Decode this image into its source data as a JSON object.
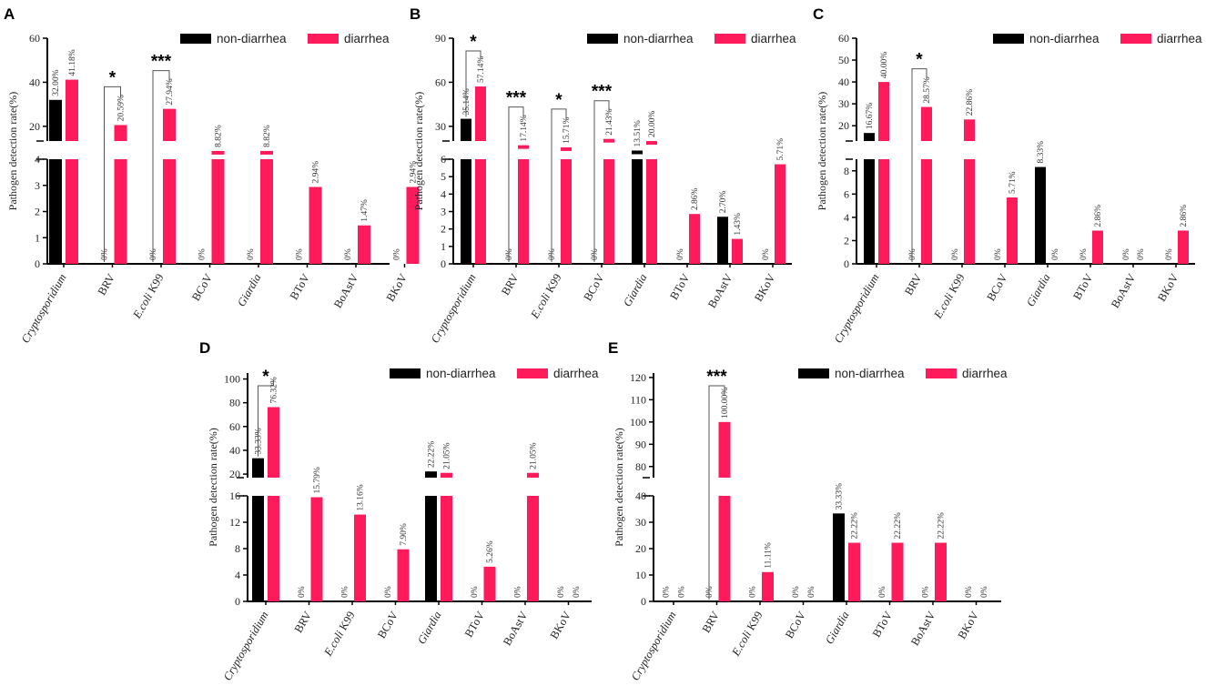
{
  "colors": {
    "non_diarrhea": "#000000",
    "diarrhea": "#ff1a5c"
  },
  "legend": {
    "non_diarrhea": "non-diarrhea",
    "diarrhea": "diarrhea"
  },
  "ylabel": "Pathogen detection rate(%)",
  "chart_data": [
    {
      "type": "bar",
      "panel": "A",
      "categories": [
        "Cryptosporidium",
        "BRV",
        "E.coli K99",
        "BCoV",
        "Giardia",
        "BToV",
        "BoAstV",
        "BKoV"
      ],
      "series": [
        {
          "name": "non-diarrhea",
          "values": [
            32.0,
            0,
            0,
            0,
            0,
            0,
            0,
            0
          ],
          "labels": [
            "32.00%",
            "0%",
            "0%",
            "0%",
            "0%",
            "0%",
            "0%",
            "0%"
          ]
        },
        {
          "name": "diarrhea",
          "values": [
            41.18,
            20.59,
            27.94,
            8.82,
            8.82,
            2.94,
            1.47,
            2.94
          ],
          "labels": [
            "41.18%",
            "20.59%",
            "27.94%",
            "8.82%",
            "8.82%",
            "2.94%",
            "1.47%",
            "2.94%"
          ]
        }
      ],
      "yticks_lower": [
        "0",
        "1",
        "2",
        "3",
        "4"
      ],
      "yticks_upper": [
        "20",
        "40",
        "60"
      ],
      "significance": [
        {
          "category": 1,
          "mark": "*"
        },
        {
          "category": 2,
          "mark": "***"
        }
      ]
    },
    {
      "type": "bar",
      "panel": "B",
      "categories": [
        "Cryptosporidium",
        "BRV",
        "E.coli K99",
        "BCoV",
        "Giardia",
        "BToV",
        "BoAstV",
        "BKoV"
      ],
      "series": [
        {
          "name": "non-diarrhea",
          "values": [
            35.14,
            0,
            0,
            0,
            13.51,
            0,
            2.7,
            0
          ],
          "labels": [
            "35.14%",
            "0%",
            "0%",
            "0%",
            "13.51%",
            "0%",
            "2.70%",
            "0%"
          ]
        },
        {
          "name": "diarrhea",
          "values": [
            57.14,
            17.14,
            15.71,
            21.43,
            20.0,
            2.86,
            1.43,
            5.71
          ],
          "labels": [
            "57.14%",
            "17.14%",
            "15.71%",
            "21.43%",
            "20.00%",
            "2.86%",
            "1.43%",
            "5.71%"
          ]
        }
      ],
      "yticks_lower": [
        "0",
        "1",
        "2",
        "3",
        "4",
        "5",
        "6"
      ],
      "yticks_upper": [
        "30",
        "60",
        "90"
      ],
      "significance": [
        {
          "category": 0,
          "mark": "*"
        },
        {
          "category": 1,
          "mark": "***"
        },
        {
          "category": 2,
          "mark": "*"
        },
        {
          "category": 3,
          "mark": "***"
        }
      ]
    },
    {
      "type": "bar",
      "panel": "C",
      "categories": [
        "Cryptosporidium",
        "BRV",
        "E.coli K99",
        "BCoV",
        "Giardia",
        "BToV",
        "BoAstV",
        "BKoV"
      ],
      "series": [
        {
          "name": "non-diarrhea",
          "values": [
            16.67,
            0,
            0,
            0,
            8.33,
            0,
            0,
            0
          ],
          "labels": [
            "16.67%",
            "0%",
            "0%",
            "0%",
            "8.33%",
            "0%",
            "0%",
            "0%"
          ]
        },
        {
          "name": "diarrhea",
          "values": [
            40.0,
            28.57,
            22.86,
            5.71,
            0,
            2.86,
            0,
            2.86
          ],
          "labels": [
            "40.00%",
            "28.57%",
            "22.86%",
            "5.71%",
            "0%",
            "2.86%",
            "0%",
            "2.86%"
          ]
        }
      ],
      "yticks_lower": [
        "0",
        "2",
        "4",
        "6",
        "8"
      ],
      "yticks_upper": [
        "20",
        "30",
        "40",
        "50",
        "60"
      ],
      "significance": [
        {
          "category": 1,
          "mark": "*"
        }
      ]
    },
    {
      "type": "bar",
      "panel": "D",
      "categories": [
        "Cryptosporidium",
        "BRV",
        "E.coli K99",
        "BCoV",
        "Giardia",
        "BToV",
        "BoAstV",
        "BKoV"
      ],
      "series": [
        {
          "name": "non-diarrhea",
          "values": [
            33.33,
            0,
            0,
            0,
            22.22,
            0,
            0,
            0
          ],
          "labels": [
            "33.33%",
            "0%",
            "0%",
            "0%",
            "22.22%",
            "0%",
            "0%",
            "0%"
          ]
        },
        {
          "name": "diarrhea",
          "values": [
            76.32,
            15.79,
            13.16,
            7.9,
            21.05,
            5.26,
            21.05,
            0
          ],
          "labels": [
            "76.32%",
            "15.79%",
            "13.16%",
            "7.90%",
            "21.05%",
            "5.26%",
            "21.05%",
            "0%"
          ]
        }
      ],
      "yticks_lower": [
        "0",
        "4",
        "8",
        "12",
        "16"
      ],
      "yticks_upper": [
        "20",
        "40",
        "60",
        "80",
        "100"
      ],
      "significance": [
        {
          "category": 0,
          "mark": "*"
        }
      ]
    },
    {
      "type": "bar",
      "panel": "E",
      "categories": [
        "Cryptosporidium",
        "BRV",
        "E.coli K99",
        "BCoV",
        "Giardia",
        "BToV",
        "BoAstV",
        "BKoV"
      ],
      "series": [
        {
          "name": "non-diarrhea",
          "values": [
            0,
            0,
            0,
            0,
            33.33,
            0,
            0,
            0
          ],
          "labels": [
            "0%",
            "0%",
            "0%",
            "0%",
            "33.33%",
            "0%",
            "0%",
            "0%"
          ]
        },
        {
          "name": "diarrhea",
          "values": [
            0,
            100.0,
            11.11,
            0,
            22.22,
            22.22,
            22.22,
            0
          ],
          "labels": [
            "0%",
            "100.00%",
            "11.11%",
            "0%",
            "22.22%",
            "22.22%",
            "22.22%",
            "0%"
          ]
        }
      ],
      "yticks_lower": [
        "0",
        "10",
        "20",
        "30",
        "40"
      ],
      "yticks_upper": [
        "80",
        "90",
        "100",
        "110",
        "120"
      ],
      "significance": [
        {
          "category": 1,
          "mark": "***"
        }
      ]
    }
  ]
}
